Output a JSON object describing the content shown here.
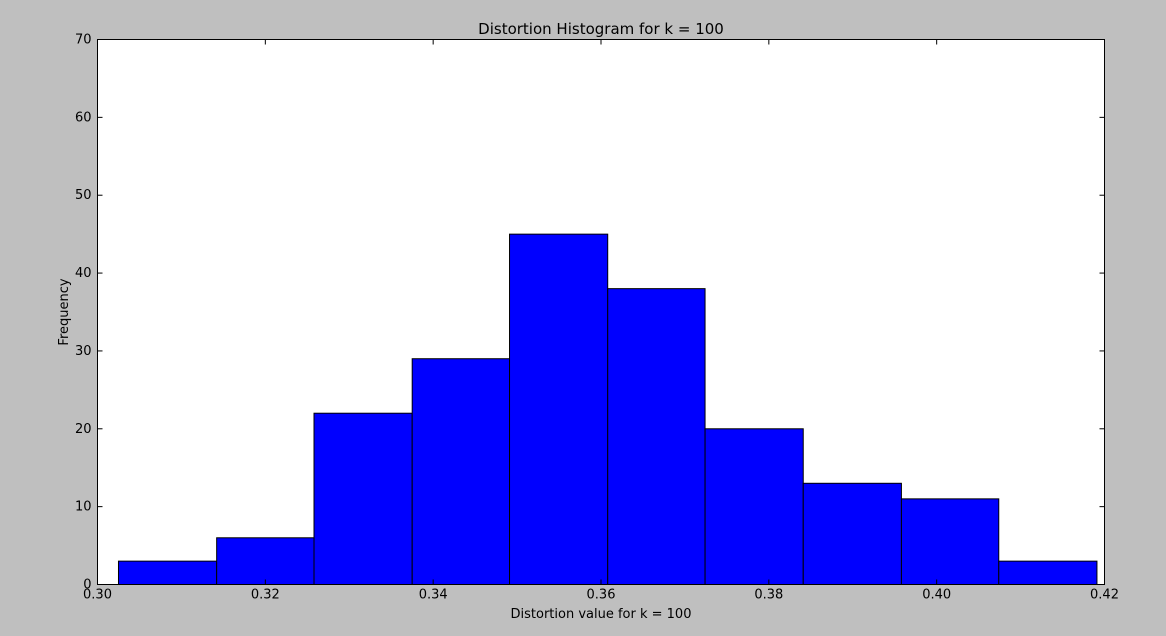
{
  "chart_data": {
    "type": "bar",
    "title": "Distortion Histogram for k = 100",
    "xlabel": "Distortion value for k = 100",
    "ylabel": "Frequency",
    "xlim": [
      0.3,
      0.42
    ],
    "ylim": [
      0,
      70
    ],
    "xticks": [
      "0.30",
      "0.32",
      "0.34",
      "0.36",
      "0.38",
      "0.40",
      "0.42"
    ],
    "yticks": [
      "0",
      "10",
      "20",
      "30",
      "40",
      "50",
      "60",
      "70"
    ],
    "bins": [
      {
        "start": 0.3025,
        "end": 0.3142,
        "value": 3
      },
      {
        "start": 0.3142,
        "end": 0.3258,
        "value": 6
      },
      {
        "start": 0.3258,
        "end": 0.3375,
        "value": 22
      },
      {
        "start": 0.3375,
        "end": 0.3491,
        "value": 29
      },
      {
        "start": 0.3491,
        "end": 0.3608,
        "value": 45
      },
      {
        "start": 0.3608,
        "end": 0.3724,
        "value": 38
      },
      {
        "start": 0.3724,
        "end": 0.3841,
        "value": 20
      },
      {
        "start": 0.3841,
        "end": 0.3958,
        "value": 13
      },
      {
        "start": 0.3958,
        "end": 0.4074,
        "value": 11
      },
      {
        "start": 0.4074,
        "end": 0.4191,
        "value": 3
      }
    ],
    "bar_color": "#0000ff",
    "edge_color": "#000000",
    "grid": false,
    "background": "#bfbfbf",
    "plot_background": "#ffffff"
  }
}
